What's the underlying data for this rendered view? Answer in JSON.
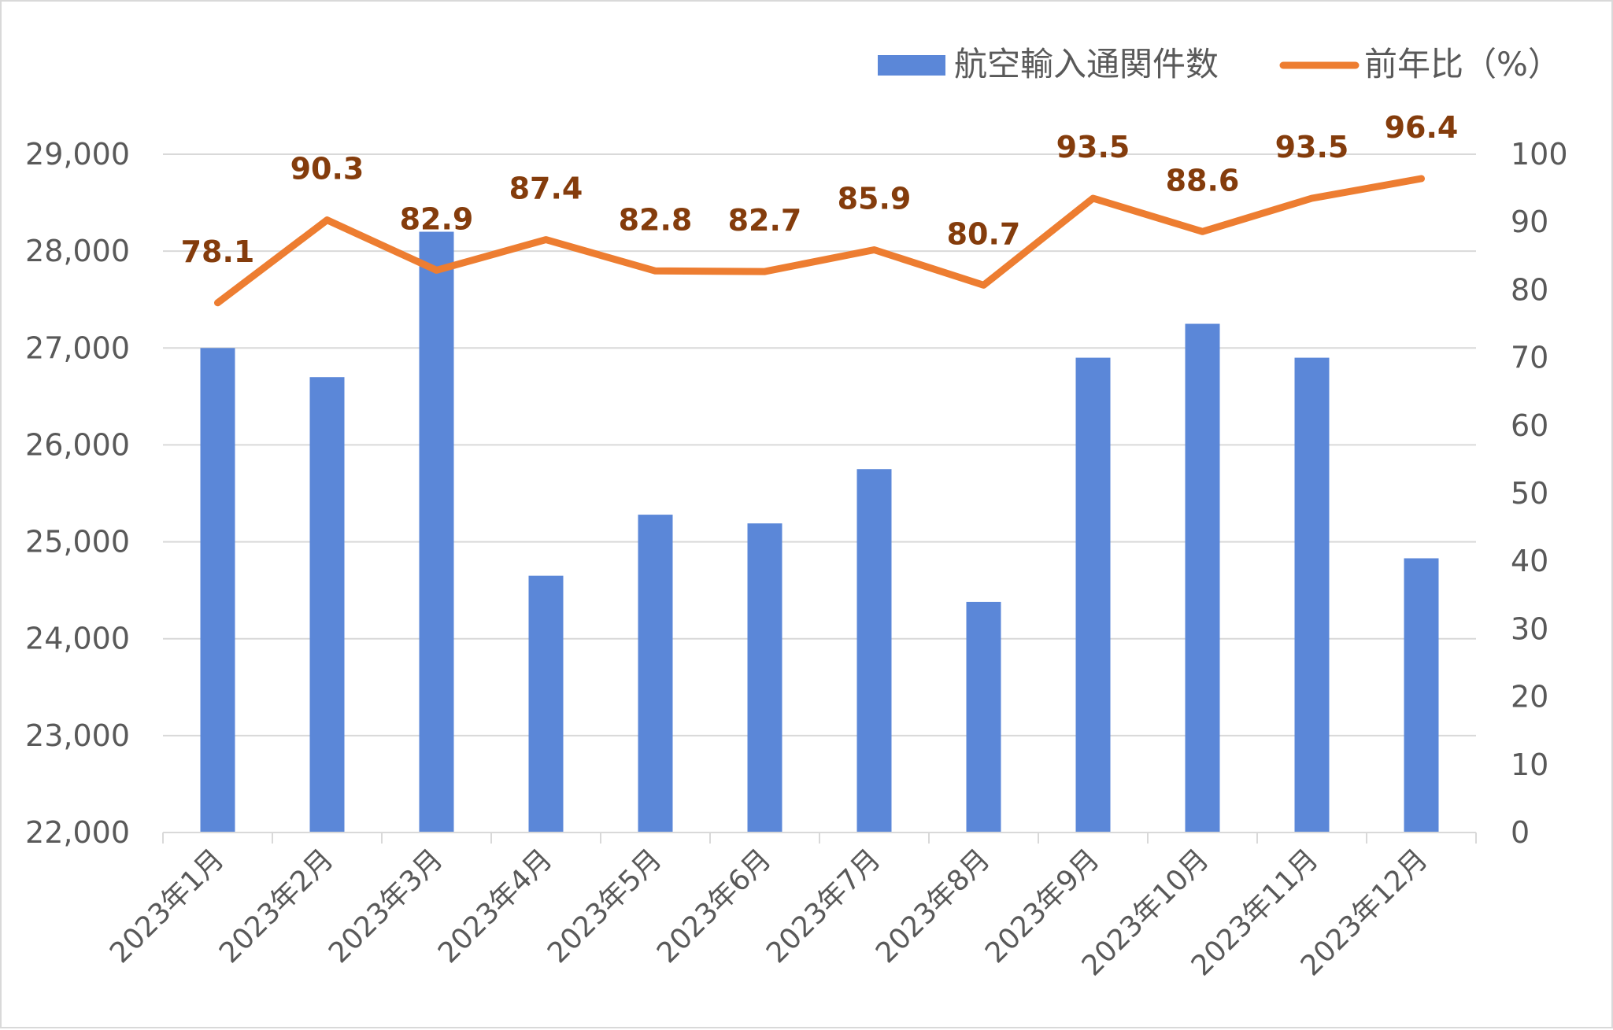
{
  "chart_data": {
    "type": "bar",
    "categories": [
      "2023年1月",
      "2023年2月",
      "2023年3月",
      "2023年4月",
      "2023年5月",
      "2023年6月",
      "2023年7月",
      "2023年8月",
      "2023年9月",
      "2023年10月",
      "2023年11月",
      "2023年12月"
    ],
    "series": [
      {
        "name": "航空輸入通関件数",
        "type": "bar",
        "axis": "left",
        "color": "#5b87d8",
        "values": [
          27000,
          26700,
          28200,
          24650,
          25280,
          25190,
          25750,
          24380,
          26900,
          27250,
          26900,
          24830
        ]
      },
      {
        "name": "前年比（%）",
        "type": "line",
        "axis": "right",
        "color": "#ed7d31",
        "values": [
          78.1,
          90.3,
          82.9,
          87.4,
          82.8,
          82.7,
          85.9,
          80.7,
          93.5,
          88.6,
          93.5,
          96.4
        ]
      }
    ],
    "data_labels": [
      "78.1",
      "90.3",
      "82.9",
      "87.4",
      "82.8",
      "82.7",
      "85.9",
      "80.7",
      "93.5",
      "88.6",
      "93.5",
      "96.4"
    ],
    "left_axis": {
      "ylim": [
        22000,
        29000
      ],
      "ticks": [
        "22,000",
        "23,000",
        "24,000",
        "25,000",
        "26,000",
        "27,000",
        "28,000",
        "29,000"
      ]
    },
    "right_axis": {
      "ylim": [
        0,
        100
      ],
      "ticks": [
        "0",
        "10",
        "20",
        "30",
        "40",
        "50",
        "60",
        "70",
        "80",
        "90",
        "100"
      ]
    },
    "title": "",
    "xlabel": "",
    "ylabel": "",
    "grid": true,
    "legend": "top-right"
  },
  "legend": {
    "bar_label": "航空輸入通関件数",
    "line_label": "前年比（%）"
  }
}
